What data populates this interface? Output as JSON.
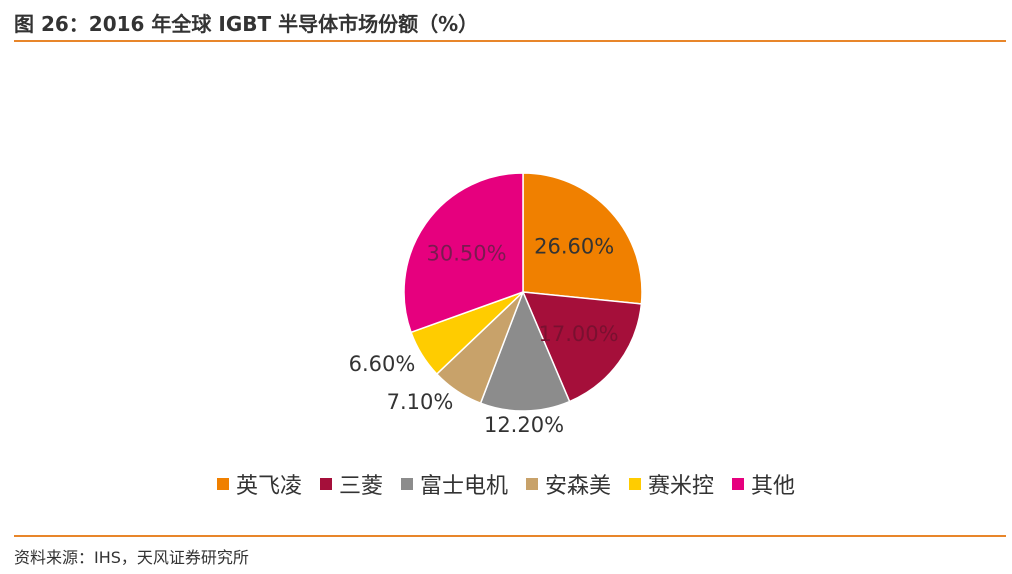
{
  "figure": {
    "title": "图 26：2016 年全球 IGBT 半导体市场份额（%）",
    "source": "资料来源：IHS，天风证券研究所"
  },
  "colors": {
    "accent": "#e8862a"
  },
  "chart_data": {
    "type": "pie",
    "title": "",
    "categories": [
      "英飞凌",
      "三菱",
      "富士电机",
      "安森美",
      "赛米控",
      "其他"
    ],
    "values": [
      26.6,
      17.0,
      12.2,
      7.1,
      6.6,
      30.5
    ],
    "labels": [
      "26.60%",
      "17.00%",
      "12.20%",
      "7.10%",
      "6.60%",
      "30.50%"
    ],
    "colors": [
      "#f08000",
      "#a50f3a",
      "#8c8c8c",
      "#c8a26a",
      "#ffcc00",
      "#e6007e"
    ],
    "legend_position": "bottom",
    "start_angle": "12 o'clock",
    "direction": "clockwise"
  }
}
